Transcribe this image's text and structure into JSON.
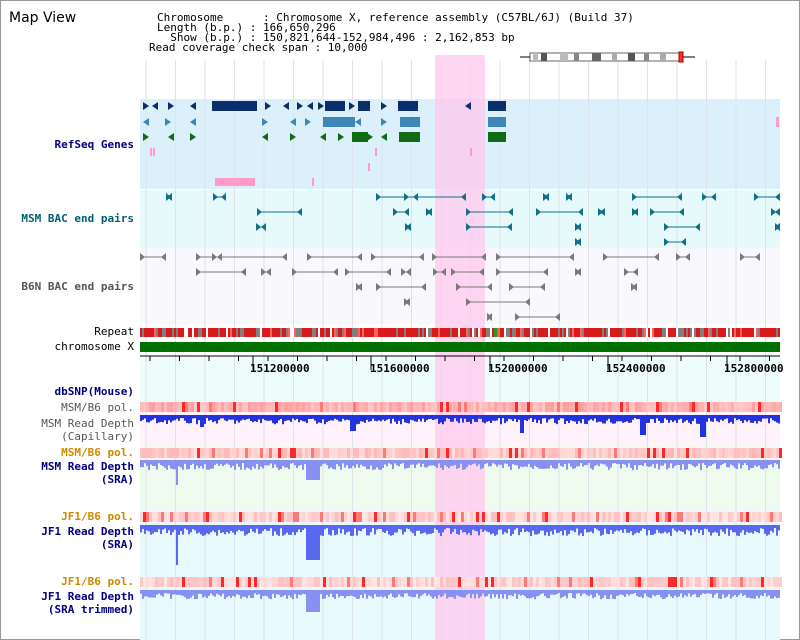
{
  "header": {
    "title": "Map View",
    "chromosome_label": "Chromosome      : Chromosome X, reference assembly (C57BL/6J) (Build 37)",
    "length_label": "Length (b.p.) : 166,650,296",
    "show_label": "  Show (b.p.) : 150,821,644-152,984,496 : 2,162,853 bp",
    "coverage_label": "Read coverage check span : 10,000"
  },
  "tracks": {
    "refseq": "RefSeq Genes",
    "msm_bac": "MSM BAC end pairs",
    "b6n_bac": "B6N BAC end pairs",
    "repeat": "Repeat",
    "chromosome": "chromosome X",
    "dbsnp": "dbSNP(Mouse)",
    "msm_pol": "MSM/B6 pol.",
    "msm_depth_cap_1": "MSM Read Depth",
    "msm_depth_cap_2": "(Capillary)",
    "msm_pol_2": "MSM/B6 pol.",
    "msm_depth_sra_1": "MSM Read Depth",
    "msm_depth_sra_2": "(SRA)",
    "jf1_pol": "JF1/B6 pol.",
    "jf1_depth_1": "JF1 Read Depth",
    "jf1_depth_2": "(SRA)",
    "jf1_pol_2": "JF1/B6 pol.",
    "jf1_trim_1": "JF1 Read Depth",
    "jf1_trim_2": "(SRA trimmed)"
  },
  "axis": {
    "ticks": [
      "151200000",
      "151600000",
      "152000000",
      "152400000",
      "152800000"
    ]
  },
  "colors": {
    "refseq_dark": "#0b2f6b",
    "refseq_mid": "#3f86b8",
    "refseq_green": "#0f6b14",
    "msm_bac": "#126f88",
    "b6n_bac": "#7a7a7a",
    "highlight": "#ffc8ee",
    "chromosome_bar": "#007000",
    "depth_blue": "#5a67ef",
    "label_blue": "#000080",
    "label_orange": "#d08a00",
    "label_gray": "#555555"
  }
}
